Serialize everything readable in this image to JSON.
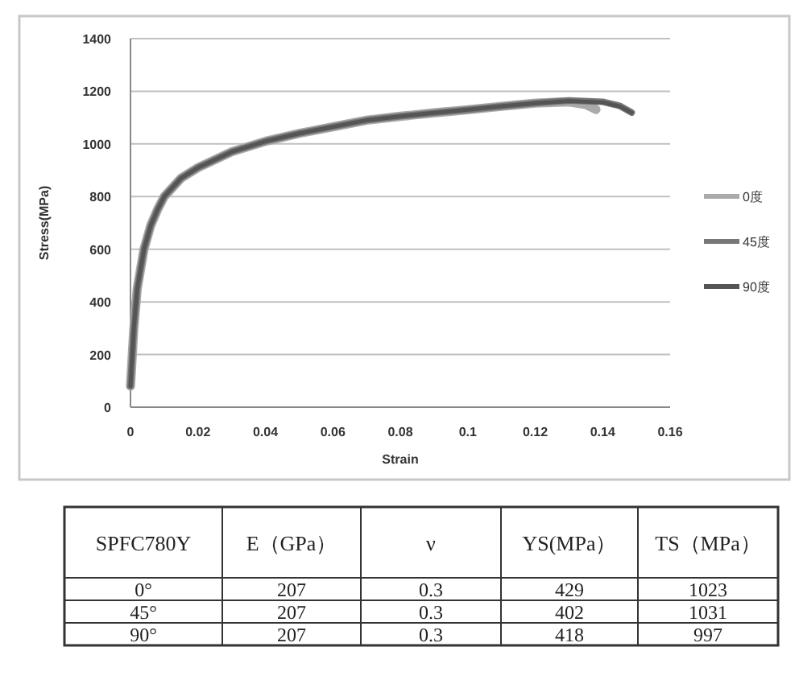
{
  "chart_data": [
    {
      "type": "line",
      "xlabel": "Strain",
      "ylabel": "Stress(MPa)",
      "xlim": [
        0,
        0.16
      ],
      "ylim": [
        0,
        1400
      ],
      "xticks": [
        0,
        0.02,
        0.04,
        0.06,
        0.08,
        0.1,
        0.12,
        0.14,
        0.16
      ],
      "yticks": [
        0,
        200,
        400,
        600,
        800,
        1000,
        1200,
        1400
      ],
      "grid": "y",
      "legend": "right",
      "marker": "none",
      "line_style": "solid",
      "series": [
        {
          "name": "0度",
          "color": "#aaaaaa",
          "x": [
            0,
            0.001,
            0.002,
            0.004,
            0.006,
            0.008,
            0.01,
            0.015,
            0.02,
            0.03,
            0.04,
            0.05,
            0.06,
            0.07,
            0.08,
            0.09,
            0.1,
            0.11,
            0.12,
            0.13,
            0.135,
            0.138
          ],
          "values": [
            80,
            300,
            450,
            600,
            690,
            750,
            800,
            870,
            910,
            970,
            1010,
            1040,
            1065,
            1090,
            1105,
            1118,
            1130,
            1143,
            1155,
            1160,
            1150,
            1131
          ]
        },
        {
          "name": "45度",
          "color": "#777777",
          "x": [
            0,
            0.001,
            0.002,
            0.004,
            0.006,
            0.008,
            0.01,
            0.015,
            0.02,
            0.03,
            0.04,
            0.05,
            0.06,
            0.07,
            0.08,
            0.09,
            0.1,
            0.11,
            0.12,
            0.13,
            0.14,
            0.145,
            0.1486
          ],
          "values": [
            80,
            300,
            450,
            600,
            690,
            750,
            800,
            870,
            910,
            970,
            1010,
            1040,
            1065,
            1090,
            1105,
            1118,
            1130,
            1143,
            1155,
            1165,
            1160,
            1145,
            1119
          ]
        },
        {
          "name": "90度",
          "color": "#555555",
          "x": [
            0,
            0.001,
            0.002,
            0.004,
            0.006,
            0.008,
            0.01,
            0.015,
            0.02,
            0.03,
            0.04,
            0.05,
            0.06,
            0.07,
            0.08,
            0.09,
            0.1,
            0.11,
            0.12,
            0.13,
            0.14,
            0.145,
            0.1486
          ],
          "values": [
            80,
            300,
            450,
            600,
            690,
            750,
            800,
            870,
            910,
            970,
            1010,
            1040,
            1065,
            1090,
            1105,
            1118,
            1130,
            1143,
            1155,
            1163,
            1158,
            1143,
            1119
          ]
        }
      ]
    },
    {
      "type": "other",
      "categories": [
        "SPFC780Y",
        "E（GPa）",
        "ν",
        "YS(MPa）",
        "TS（MPa）"
      ],
      "annotations": [
        "0°",
        "207",
        "0.3",
        "429",
        "1023",
        "45°",
        "207",
        "0.3",
        "402",
        "1031",
        "90°",
        "207",
        "0.3",
        "418",
        "997"
      ]
    }
  ]
}
